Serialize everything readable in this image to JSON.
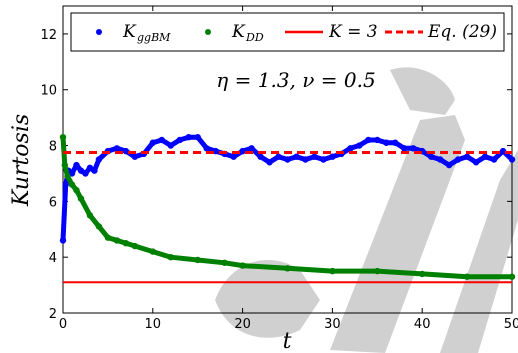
{
  "chart_data": {
    "type": "line",
    "xlabel": "t",
    "ylabel": "Kurtosis",
    "xlim": [
      0,
      50
    ],
    "ylim": [
      2,
      13
    ],
    "xticks": [
      "0",
      "10",
      "20",
      "30",
      "40",
      "50"
    ],
    "yticks": [
      "2",
      "4",
      "6",
      "8",
      "10",
      "12"
    ],
    "annotation": "η = 1.3,  ν = 0.5",
    "legend_position": "top",
    "series": [
      {
        "name": "K_ggBM",
        "legend_main": "K",
        "legend_sub": "ggBM",
        "style": "dots",
        "color": "#0000ff",
        "x": [
          0,
          0.3,
          0.6,
          1,
          1.5,
          2,
          2.5,
          3,
          3.5,
          4,
          5,
          6,
          7,
          8,
          9,
          10,
          11,
          12,
          13,
          14,
          15,
          16,
          17,
          18,
          19,
          20,
          21,
          22,
          23,
          24,
          25,
          26,
          27,
          28,
          29,
          30,
          31,
          32,
          33,
          34,
          35,
          36,
          37,
          38,
          39,
          40,
          41,
          42,
          43,
          44,
          45,
          46,
          47,
          48,
          49,
          50
        ],
        "y": [
          4.6,
          6.6,
          7.1,
          7.0,
          7.3,
          7.1,
          7.0,
          7.2,
          7.1,
          7.5,
          7.8,
          7.9,
          7.8,
          7.6,
          7.7,
          8.1,
          8.2,
          8.0,
          8.2,
          8.3,
          8.3,
          7.9,
          7.8,
          7.7,
          7.6,
          7.8,
          7.9,
          7.6,
          7.4,
          7.6,
          7.5,
          7.6,
          7.5,
          7.6,
          7.5,
          7.6,
          7.7,
          7.9,
          8.0,
          8.2,
          8.2,
          8.1,
          8.1,
          7.9,
          7.9,
          7.8,
          7.6,
          7.5,
          7.3,
          7.5,
          7.6,
          7.4,
          7.6,
          7.5,
          7.8,
          7.5
        ]
      },
      {
        "name": "K_DD",
        "legend_main": "K",
        "legend_sub": "DD",
        "style": "dots",
        "color": "#008000",
        "x": [
          0,
          0.2,
          0.5,
          1,
          1.5,
          2,
          3,
          4,
          5,
          6,
          7,
          8,
          10,
          12,
          15,
          18,
          20,
          25,
          30,
          35,
          40,
          45,
          50
        ],
        "y": [
          8.3,
          7.3,
          6.9,
          6.6,
          6.4,
          6.1,
          5.5,
          5.1,
          4.7,
          4.6,
          4.5,
          4.4,
          4.2,
          4.0,
          3.9,
          3.8,
          3.7,
          3.6,
          3.5,
          3.5,
          3.4,
          3.3,
          3.3
        ]
      },
      {
        "name": "K = 3",
        "style": "solid",
        "color": "#ff0000",
        "x": [
          0,
          50
        ],
        "y": [
          3.1,
          3.1
        ]
      },
      {
        "name": "Eq. (29)",
        "style": "dashed",
        "color": "#ff0000",
        "x": [
          0,
          50
        ],
        "y": [
          7.75,
          7.75
        ]
      }
    ],
    "legend_labels": {
      "k3": "K = 3",
      "eq29": "Eq. (29)"
    }
  }
}
